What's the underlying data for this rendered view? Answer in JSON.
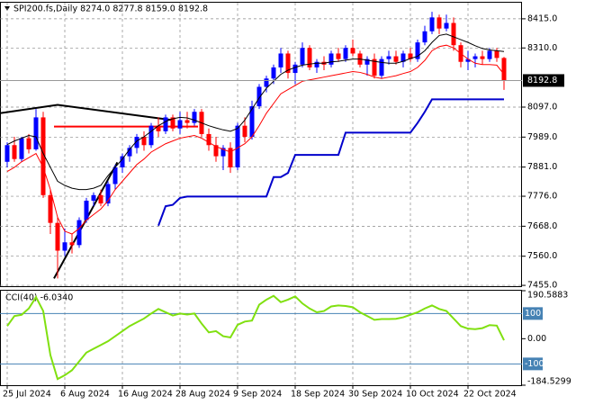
{
  "chart_data": [
    {
      "type": "candlestick",
      "title": "SPI200.fs,Daily  8274.0 8277.8 8159.0 8192.8",
      "categories": [
        "25 Jul 2024",
        null,
        null,
        null,
        null,
        null,
        null,
        null,
        "6 Aug 2024",
        null,
        null,
        null,
        null,
        null,
        null,
        null,
        "16 Aug 2024",
        null,
        null,
        null,
        null,
        null,
        null,
        null,
        "28 Aug 2024",
        null,
        null,
        null,
        null,
        null,
        null,
        null,
        "9 Sep 2024",
        null,
        null,
        null,
        null,
        null,
        null,
        null,
        "18 Sep 2024",
        null,
        null,
        null,
        null,
        null,
        null,
        null,
        "30 Sep 2024",
        null,
        null,
        null,
        null,
        null,
        null,
        null,
        "10 Oct 2024",
        null,
        null,
        null,
        null,
        null,
        null,
        null,
        "22 Oct 2024",
        null,
        null,
        null,
        null,
        null
      ],
      "ohlc": [
        [
          7900,
          7970,
          7880,
          7960
        ],
        [
          7960,
          7990,
          7900,
          7910
        ],
        [
          7910,
          7990,
          7900,
          7985
        ],
        [
          7985,
          8000,
          7930,
          7945
        ],
        [
          7945,
          8090,
          7940,
          8060
        ],
        [
          8060,
          8080,
          7770,
          7780
        ],
        [
          7780,
          7800,
          7640,
          7680
        ],
        [
          7680,
          7700,
          7480,
          7580
        ],
        [
          7580,
          7660,
          7560,
          7610
        ],
        [
          7610,
          7640,
          7570,
          7600
        ],
        [
          7600,
          7700,
          7590,
          7690
        ],
        [
          7690,
          7770,
          7680,
          7760
        ],
        [
          7760,
          7790,
          7740,
          7780
        ],
        [
          7780,
          7800,
          7740,
          7750
        ],
        [
          7750,
          7830,
          7740,
          7820
        ],
        [
          7820,
          7890,
          7800,
          7880
        ],
        [
          7880,
          7930,
          7860,
          7920
        ],
        [
          7920,
          7960,
          7900,
          7950
        ],
        [
          7950,
          8000,
          7930,
          7990
        ],
        [
          7990,
          8010,
          7940,
          7960
        ],
        [
          7960,
          8040,
          7950,
          8030
        ],
        [
          8030,
          8060,
          7990,
          8010
        ],
        [
          8010,
          8070,
          8000,
          8060
        ],
        [
          8060,
          8070,
          8010,
          8020
        ],
        [
          8020,
          8080,
          8000,
          8050
        ],
        [
          8050,
          8080,
          8020,
          8040
        ],
        [
          8040,
          8090,
          8030,
          8080
        ],
        [
          8080,
          8090,
          7990,
          8000
        ],
        [
          8000,
          8020,
          7940,
          7960
        ],
        [
          7960,
          7990,
          7900,
          7920
        ],
        [
          7920,
          7960,
          7870,
          7950
        ],
        [
          7950,
          7970,
          7860,
          7880
        ],
        [
          7880,
          8040,
          7870,
          8030
        ],
        [
          8030,
          8060,
          7970,
          7990
        ],
        [
          7990,
          8120,
          7980,
          8100
        ],
        [
          8100,
          8180,
          8090,
          8170
        ],
        [
          8170,
          8210,
          8150,
          8200
        ],
        [
          8200,
          8250,
          8180,
          8240
        ],
        [
          8240,
          8310,
          8220,
          8290
        ],
        [
          8290,
          8300,
          8200,
          8220
        ],
        [
          8220,
          8260,
          8180,
          8250
        ],
        [
          8250,
          8330,
          8240,
          8310
        ],
        [
          8310,
          8320,
          8230,
          8240
        ],
        [
          8240,
          8270,
          8220,
          8260
        ],
        [
          8260,
          8280,
          8230,
          8250
        ],
        [
          8250,
          8300,
          8240,
          8290
        ],
        [
          8290,
          8310,
          8260,
          8270
        ],
        [
          8270,
          8320,
          8260,
          8310
        ],
        [
          8310,
          8340,
          8280,
          8290
        ],
        [
          8290,
          8300,
          8240,
          8250
        ],
        [
          8250,
          8280,
          8210,
          8270
        ],
        [
          8270,
          8290,
          8200,
          8210
        ],
        [
          8210,
          8280,
          8200,
          8270
        ],
        [
          8270,
          8300,
          8250,
          8280
        ],
        [
          8280,
          8300,
          8250,
          8260
        ],
        [
          8260,
          8300,
          8240,
          8290
        ],
        [
          8290,
          8310,
          8260,
          8270
        ],
        [
          8270,
          8340,
          8260,
          8330
        ],
        [
          8330,
          8390,
          8320,
          8370
        ],
        [
          8370,
          8440,
          8360,
          8420
        ],
        [
          8420,
          8430,
          8360,
          8380
        ],
        [
          8380,
          8430,
          8370,
          8400
        ],
        [
          8400,
          8420,
          8300,
          8320
        ],
        [
          8320,
          8330,
          8240,
          8260
        ],
        [
          8260,
          8300,
          8230,
          8270
        ],
        [
          8270,
          8290,
          8240,
          8280
        ],
        [
          8280,
          8300,
          8250,
          8270
        ],
        [
          8270,
          8310,
          8260,
          8300
        ],
        [
          8300,
          8310,
          8260,
          8274
        ],
        [
          8274.0,
          8277.8,
          8159.0,
          8192.8
        ]
      ],
      "up_color": "#0000ff",
      "down_color": "#ff0000",
      "lines": [
        {
          "color": "#000000",
          "values": [
            7962,
            7975,
            7985,
            7995,
            7990,
            7930,
            7880,
            7830,
            7815,
            7805,
            7800,
            7800,
            7805,
            7815,
            7850,
            7880,
            7910,
            7945,
            7975,
            7990,
            8010,
            8030,
            8045,
            8055,
            8060,
            8058,
            8050,
            8040,
            8030,
            8022,
            8015,
            8010,
            8020,
            8050,
            8090,
            8130,
            8165,
            8190,
            8215,
            8230,
            8240,
            8248,
            8252,
            8255,
            8255,
            8260,
            8262,
            8266,
            8270,
            8270,
            8266,
            8262,
            8258,
            8255,
            8255,
            8262,
            8272,
            8280,
            8300,
            8330,
            8355,
            8360,
            8350,
            8340,
            8330,
            8318,
            8308,
            8303,
            8300,
            8297
          ]
        },
        {
          "color": "#ff0000",
          "values": [
            7865,
            7880,
            7900,
            7915,
            7930,
            7880,
            7800,
            7700,
            7650,
            7640,
            7660,
            7690,
            7710,
            7730,
            7760,
            7800,
            7830,
            7860,
            7890,
            7910,
            7935,
            7950,
            7965,
            7975,
            7985,
            7990,
            7995,
            7985,
            7970,
            7955,
            7945,
            7935,
            7950,
            7965,
            7990,
            8030,
            8075,
            8110,
            8145,
            8160,
            8175,
            8190,
            8195,
            8200,
            8205,
            8210,
            8215,
            8220,
            8225,
            8222,
            8215,
            8205,
            8200,
            8205,
            8210,
            8218,
            8225,
            8240,
            8265,
            8300,
            8315,
            8320,
            8310,
            8290,
            8270,
            8255,
            8250,
            8250,
            8248,
            8215
          ]
        },
        {
          "color": "#0000cc",
          "values": [
            null,
            null,
            null,
            null,
            null,
            null,
            null,
            null,
            null,
            null,
            null,
            null,
            null,
            null,
            null,
            null,
            null,
            null,
            null,
            null,
            null,
            7670,
            7740,
            7745,
            7770,
            7775,
            7775,
            7775,
            7775,
            7775,
            7775,
            7775,
            7775,
            7775,
            7775,
            7775,
            7775,
            7845,
            7845,
            7860,
            7925,
            7925,
            7925,
            7925,
            7925,
            7925,
            7925,
            8005,
            8005,
            8005,
            8005,
            8005,
            8005,
            8005,
            8005,
            8005,
            8005,
            8040,
            8080,
            8125,
            8125,
            8125,
            8125,
            8125,
            8125,
            8125,
            8125,
            8125,
            8125,
            8125
          ]
        }
      ],
      "trend_lines": [
        {
          "color": "#000000",
          "bars": [
            -1,
            7,
            23
          ],
          "prices": [
            8075,
            8105,
            8050
          ]
        },
        {
          "color": "#000000",
          "bars": [
            6.5,
            15.3
          ],
          "prices": [
            7480,
            7898
          ]
        },
        {
          "color": "#ff0000",
          "bars": [
            6.5,
            26.5
          ],
          "prices": [
            8027,
            8027
          ]
        }
      ],
      "ylim": [
        7452,
        8473
      ],
      "yticks": [
        {
          "value": 8415,
          "label": "8415.0"
        },
        {
          "value": 8310,
          "label": "8310.0"
        },
        {
          "value": 8097,
          "label": "8097.0"
        },
        {
          "value": 7989,
          "label": "7989.0"
        },
        {
          "value": 7881,
          "label": "7881.0"
        },
        {
          "value": 7776,
          "label": "7776.0"
        },
        {
          "value": 7668,
          "label": "7668.0"
        },
        {
          "value": 7560,
          "label": "7560.0"
        },
        {
          "value": 7455,
          "label": "7455.0"
        }
      ],
      "grid": true
    },
    {
      "type": "line",
      "title": "CCI(40) -6.0340",
      "color": "#80e010",
      "values": [
        50,
        90,
        95,
        120,
        165,
        110,
        -65,
        -160,
        -145,
        -125,
        -90,
        -55,
        -40,
        -25,
        -10,
        10,
        30,
        50,
        65,
        80,
        100,
        118,
        105,
        92,
        100,
        96,
        100,
        60,
        25,
        30,
        10,
        5,
        55,
        68,
        72,
        135,
        155,
        170,
        145,
        155,
        168,
        140,
        120,
        105,
        110,
        128,
        132,
        130,
        125,
        105,
        90,
        75,
        78,
        78,
        79,
        85,
        95,
        105,
        120,
        132,
        118,
        110,
        80,
        50,
        40,
        38,
        42,
        54,
        52,
        -6.034
      ],
      "ylim": [
        -184.5299,
        190.5883
      ],
      "yticks": [
        190.5883,
        {
          "value": 0,
          "label": "0.00"
        },
        -184.5299
      ],
      "levels": [
        100,
        -100
      ],
      "level_color": "#4682b4"
    }
  ]
}
